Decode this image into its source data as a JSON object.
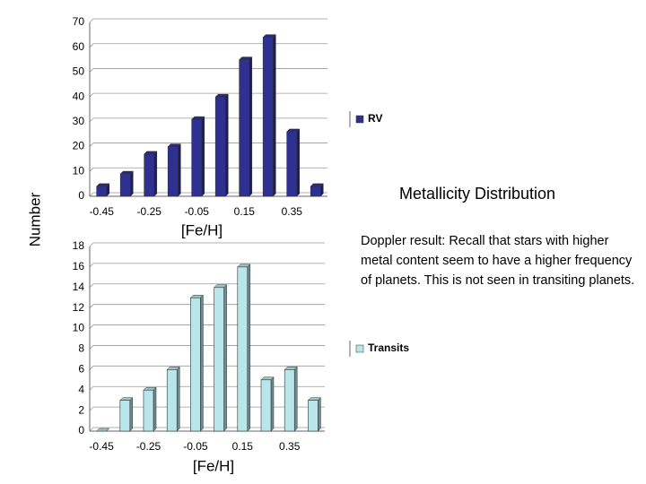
{
  "title": "Metallicity Distribution",
  "note": "Doppler result: Recall that stars with higher metal content seem to have a higher frequency of planets. This is not seen in transiting planets.",
  "chart_data": [
    {
      "type": "bar",
      "ylabel": "Number",
      "xlabel": "[Fe/H]",
      "categories": [
        "-0.45",
        null,
        "-0.25",
        null,
        "-0.05",
        null,
        "0.15",
        null,
        "0.35",
        null
      ],
      "series": [
        {
          "name": "RV",
          "color": "#2e3192",
          "values": [
            4,
            9,
            17,
            20,
            31,
            40,
            55,
            64,
            26,
            4
          ]
        }
      ],
      "ylim": [
        0,
        70
      ],
      "yticks": [
        0,
        10,
        20,
        30,
        40,
        50,
        60,
        70
      ],
      "grid": true
    },
    {
      "type": "bar",
      "xlabel": "[Fe/H]",
      "categories": [
        "-0.45",
        null,
        "-0.25",
        null,
        "-0.05",
        null,
        "0.15",
        null,
        "0.35",
        null
      ],
      "series": [
        {
          "name": "Transits",
          "color": "#b9e6ea",
          "values": [
            0,
            3,
            4,
            6,
            13,
            14,
            16,
            5,
            6,
            3
          ]
        }
      ],
      "ylim": [
        0,
        18
      ],
      "yticks": [
        0,
        2,
        4,
        6,
        8,
        10,
        12,
        14,
        16,
        18
      ],
      "grid": true
    }
  ]
}
